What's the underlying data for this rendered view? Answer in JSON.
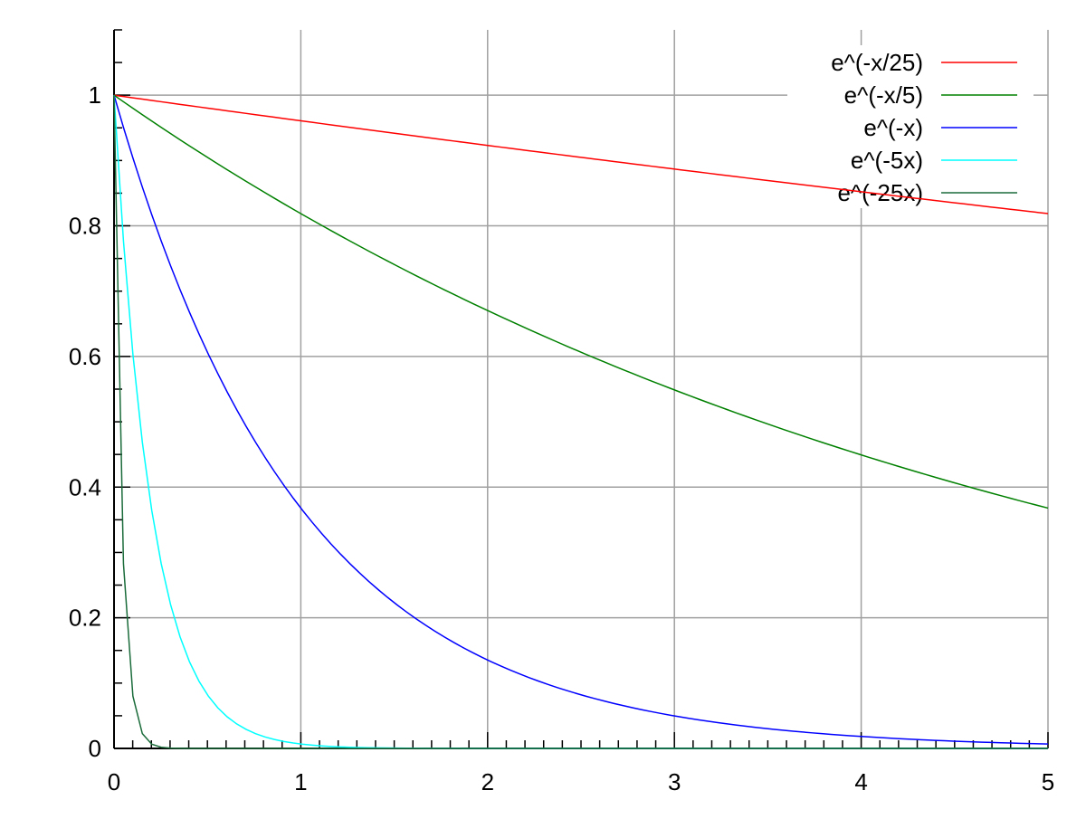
{
  "chart_data": {
    "type": "line",
    "title": "",
    "xlabel": "",
    "ylabel": "",
    "xlim": [
      0,
      5
    ],
    "ylim": [
      0,
      1.1
    ],
    "x_ticks": [
      "0",
      "1",
      "2",
      "3",
      "4",
      "5"
    ],
    "y_ticks": [
      "0",
      "0.2",
      "0.4",
      "0.6",
      "0.8",
      "1"
    ],
    "x_minor_step": 0.1,
    "y_minor_step": 0.05,
    "grid": true,
    "grid_color": "#a0a0a0",
    "legend_position": "top-right",
    "samples": 100,
    "series": [
      {
        "name": "e^(-x/25)",
        "rate": 0.04,
        "color": "#ff0000"
      },
      {
        "name": "e^(-x/5)",
        "rate": 0.2,
        "color": "#008000"
      },
      {
        "name": "e^(-x)",
        "rate": 1,
        "color": "#0000ff"
      },
      {
        "name": "e^(-5x)",
        "rate": 5,
        "color": "#00ffff"
      },
      {
        "name": "e^(-25x)",
        "rate": 25,
        "color": "#1a6b3a"
      }
    ]
  }
}
